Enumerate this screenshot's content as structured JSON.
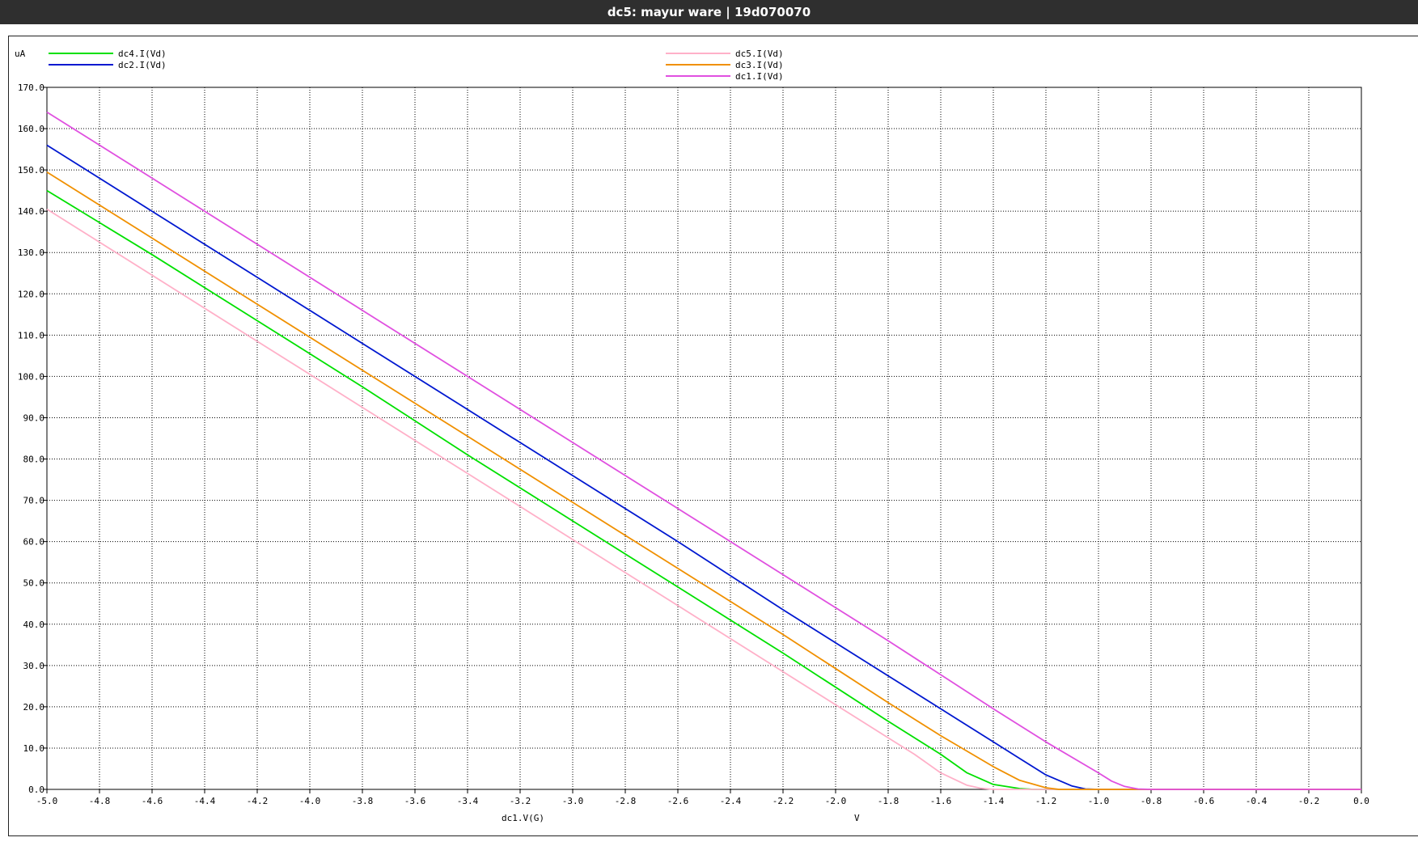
{
  "window": {
    "title": "dc5: mayur ware | 19d070070"
  },
  "colors": {
    "grid": "#000000",
    "background": "#ffffff",
    "axis": "#000000"
  },
  "chart_data": {
    "type": "line",
    "y_unit": "uA",
    "x_unit": "V",
    "xlabel": "dc1.V(G)",
    "xlim": [
      -5.0,
      0.0
    ],
    "ylim": [
      0.0,
      170.0
    ],
    "x_ticks": [
      "-5.0",
      "-4.8",
      "-4.6",
      "-4.4",
      "-4.2",
      "-4.0",
      "-3.8",
      "-3.6",
      "-3.4",
      "-3.2",
      "-3.0",
      "-2.8",
      "-2.6",
      "-2.4",
      "-2.2",
      "-2.0",
      "-1.8",
      "-1.6",
      "-1.4",
      "-1.2",
      "-1.0",
      "-0.8",
      "-0.6",
      "-0.4",
      "-0.2",
      "0.0"
    ],
    "y_ticks": [
      "0.0",
      "10.0",
      "20.0",
      "30.0",
      "40.0",
      "50.0",
      "60.0",
      "70.0",
      "80.0",
      "90.0",
      "100.0",
      "110.0",
      "120.0",
      "130.0",
      "140.0",
      "150.0",
      "160.0",
      "170.0"
    ],
    "grid": true,
    "legend_left": [
      "dc4.I(Vd)",
      "dc2.I(Vd)"
    ],
    "legend_center": [
      "dc5.I(Vd)",
      "dc3.I(Vd)",
      "dc1.I(Vd)"
    ],
    "series": [
      {
        "name": "dc4.I(Vd)",
        "color": "#00e000",
        "x": [
          -5.0,
          -4.6,
          -4.2,
          -3.8,
          -3.4,
          -3.0,
          -2.6,
          -2.2,
          -1.8,
          -1.6,
          -1.5,
          -1.4,
          -1.3,
          -1.25,
          -1.2,
          0.0
        ],
        "y": [
          145.0,
          129.5,
          113.5,
          97.5,
          81.0,
          65.0,
          49.0,
          33.0,
          16.5,
          8.5,
          4.0,
          1.2,
          0.2,
          0.0,
          0.0,
          0.0
        ]
      },
      {
        "name": "dc2.I(Vd)",
        "color": "#0018d0",
        "x": [
          -5.0,
          -4.6,
          -4.2,
          -3.8,
          -3.4,
          -3.0,
          -2.6,
          -2.2,
          -1.8,
          -1.6,
          -1.4,
          -1.3,
          -1.2,
          -1.1,
          -1.05,
          -1.0,
          0.0
        ],
        "y": [
          156.0,
          140.0,
          124.0,
          108.0,
          92.0,
          76.0,
          60.0,
          43.5,
          27.5,
          19.5,
          11.5,
          7.5,
          3.5,
          0.8,
          0.1,
          0.0,
          0.0
        ]
      },
      {
        "name": "dc5.I(Vd)",
        "color": "#ffb0c8",
        "x": [
          -5.0,
          -4.6,
          -4.2,
          -3.8,
          -3.4,
          -3.0,
          -2.6,
          -2.2,
          -1.8,
          -1.7,
          -1.6,
          -1.5,
          -1.45,
          -1.4,
          0.0
        ],
        "y": [
          140.5,
          124.5,
          108.5,
          92.5,
          76.5,
          60.5,
          44.5,
          28.5,
          12.5,
          8.5,
          4.0,
          1.0,
          0.3,
          0.0,
          0.0
        ]
      },
      {
        "name": "dc3.I(Vd)",
        "color": "#f09000",
        "x": [
          -5.0,
          -4.6,
          -4.2,
          -3.8,
          -3.4,
          -3.0,
          -2.6,
          -2.2,
          -1.8,
          -1.6,
          -1.4,
          -1.3,
          -1.2,
          -1.15,
          -1.1,
          0.0
        ],
        "y": [
          149.5,
          133.5,
          117.5,
          101.5,
          85.5,
          69.5,
          53.5,
          37.5,
          21.0,
          13.0,
          5.5,
          2.2,
          0.4,
          0.0,
          0.0,
          0.0
        ]
      },
      {
        "name": "dc1.I(Vd)",
        "color": "#e050e0",
        "x": [
          -5.0,
          -4.6,
          -4.2,
          -3.8,
          -3.4,
          -3.0,
          -2.6,
          -2.2,
          -1.8,
          -1.4,
          -1.2,
          -1.0,
          -0.95,
          -0.9,
          -0.85,
          -0.8,
          0.0
        ],
        "y": [
          164.0,
          148.0,
          132.0,
          116.0,
          100.0,
          84.0,
          68.0,
          52.0,
          36.0,
          19.5,
          11.5,
          4.0,
          2.0,
          0.7,
          0.1,
          0.0,
          0.0
        ]
      }
    ]
  }
}
